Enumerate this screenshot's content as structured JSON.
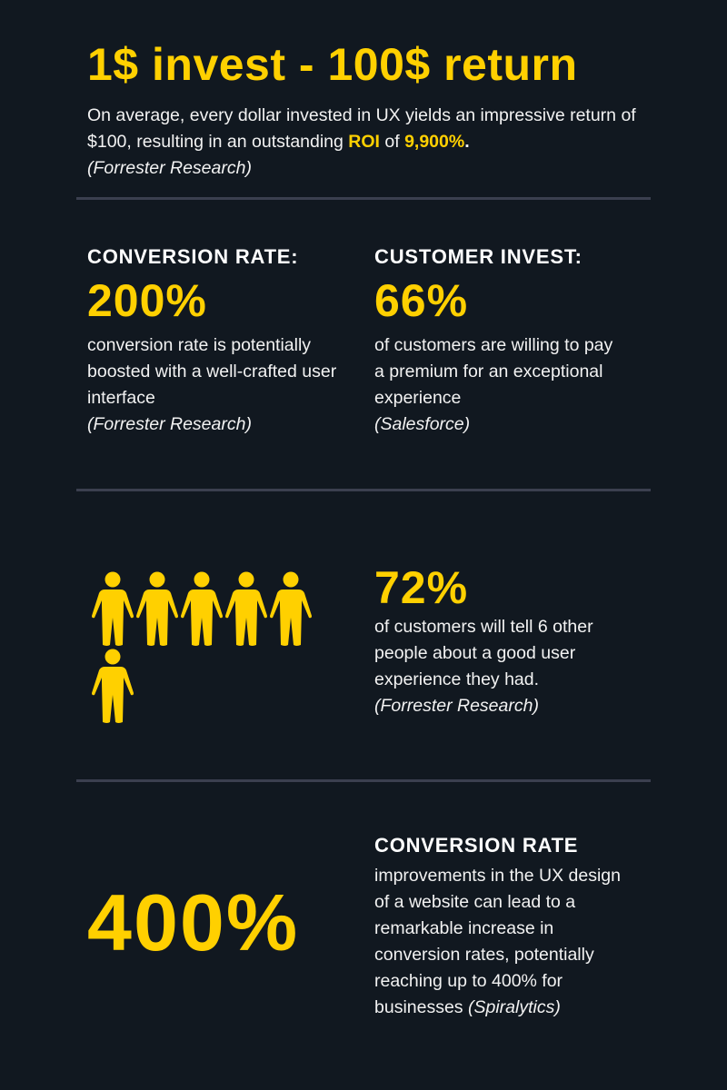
{
  "colors": {
    "background": "#111820",
    "accent": "#FFD000",
    "divider": "#3b3f4f",
    "text": "#f2f2f2"
  },
  "hero": {
    "title": "1$ invest - 100$ return",
    "text_before": "On average, every dollar invested in UX yields an impressive return of $100, resulting in an outstanding ",
    "roi_label": "ROI",
    "text_mid": " of ",
    "roi_value": "9,900%",
    "text_end": ".",
    "source": "(Forrester Research)"
  },
  "stats": [
    {
      "heading": "CONVERSION RATE:",
      "value": "200%",
      "text": "conversion rate is potentially boosted with a well-crafted user interface",
      "source": "(Forrester Research)"
    },
    {
      "heading": "CUSTOMER INVEST:",
      "value": "66%",
      "text": "of customers are willing to pay a premium for an exceptional experience",
      "source": "(Salesforce)"
    }
  ],
  "word_of_mouth": {
    "icon": "person-icon",
    "icon_count": 6,
    "value": "72%",
    "text": "of customers will tell 6 other people about a good user experience they had.",
    "source": "(Forrester Research)"
  },
  "conversion": {
    "value": "400%",
    "heading": "CONVERSION RATE",
    "text": "improvements in the UX design of a website can lead to a remarkable increase in conversion rates, potentially reaching up to 400% for businesses ",
    "source": "(Spiralytics)"
  }
}
